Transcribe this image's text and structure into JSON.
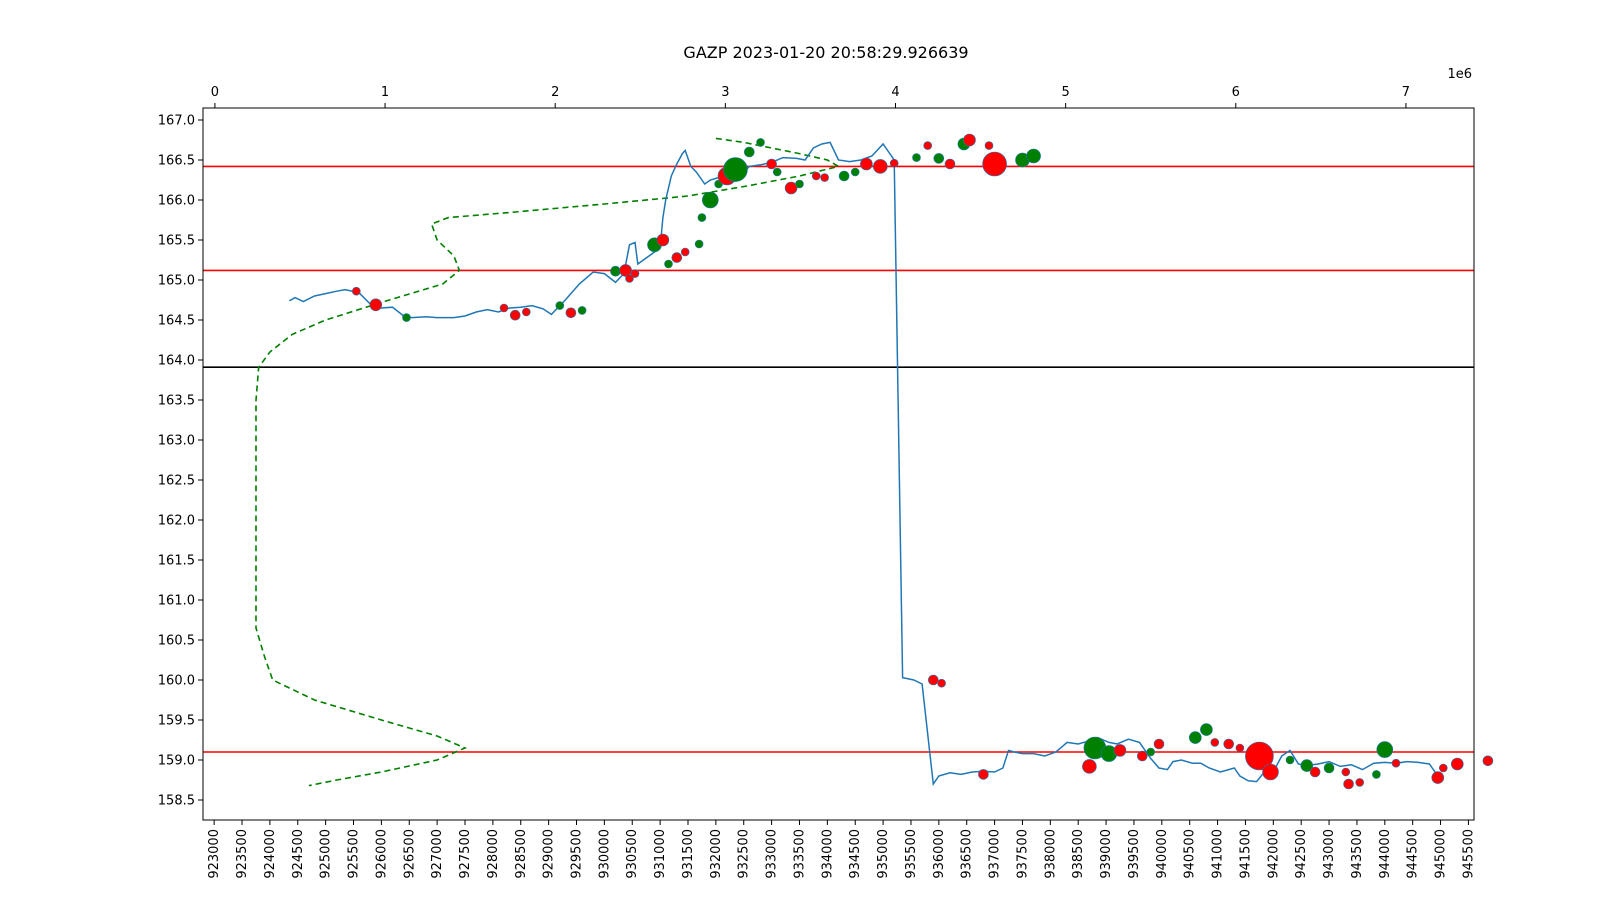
{
  "chart_data": {
    "type": "line",
    "title": "GAZP 2023-01-20 20:58:29.926639",
    "xlabel": "",
    "ylabel": "",
    "x_range": [
      922800,
      945600
    ],
    "ylim": [
      158.25,
      167.15
    ],
    "x_ticks": [
      923000,
      923500,
      924000,
      924500,
      925000,
      925500,
      926000,
      926500,
      927000,
      927500,
      928000,
      928500,
      929000,
      929500,
      930000,
      930500,
      931000,
      931500,
      932000,
      932500,
      933000,
      933500,
      934000,
      934500,
      935000,
      935500,
      936000,
      936500,
      937000,
      937500,
      938000,
      938500,
      939000,
      939500,
      940000,
      940500,
      941000,
      941500,
      942000,
      942500,
      943000,
      943500,
      944000,
      944500,
      945000,
      945500
    ],
    "y_ticks": [
      "158.5",
      "159.0",
      "159.5",
      "160.0",
      "160.5",
      "161.0",
      "161.5",
      "162.0",
      "162.5",
      "163.0",
      "163.5",
      "164.0",
      "164.5",
      "165.0",
      "165.5",
      "166.0",
      "166.5",
      "167.0"
    ],
    "top_axis": {
      "range": [
        -0.07,
        7.4
      ],
      "ticks": [
        "0",
        "1",
        "2",
        "3",
        "4",
        "5",
        "6",
        "7"
      ],
      "offset_label": "1e6"
    },
    "hlines": [
      {
        "y": 166.42,
        "color": "#ff0000"
      },
      {
        "y": 165.12,
        "color": "#ff0000"
      },
      {
        "y": 163.91,
        "color": "#000000"
      },
      {
        "y": 159.1,
        "color": "#ff0000"
      }
    ],
    "price_series": {
      "color": "#1f77b4",
      "points": [
        [
          924350,
          164.74
        ],
        [
          924450,
          164.78
        ],
        [
          924600,
          164.73
        ],
        [
          924800,
          164.8
        ],
        [
          925000,
          164.83
        ],
        [
          925200,
          164.86
        ],
        [
          925350,
          164.88
        ],
        [
          925600,
          164.84
        ],
        [
          925800,
          164.7
        ],
        [
          926000,
          164.65
        ],
        [
          926200,
          164.66
        ],
        [
          926400,
          164.55
        ],
        [
          926550,
          164.53
        ],
        [
          926800,
          164.54
        ],
        [
          927000,
          164.53
        ],
        [
          927300,
          164.53
        ],
        [
          927500,
          164.55
        ],
        [
          927700,
          164.6
        ],
        [
          927900,
          164.63
        ],
        [
          928100,
          164.6
        ],
        [
          928300,
          164.65
        ],
        [
          928500,
          164.66
        ],
        [
          928700,
          164.68
        ],
        [
          928900,
          164.64
        ],
        [
          929050,
          164.57
        ],
        [
          929300,
          164.75
        ],
        [
          929550,
          164.95
        ],
        [
          929800,
          165.1
        ],
        [
          930000,
          165.08
        ],
        [
          930200,
          164.97
        ],
        [
          930350,
          165.08
        ],
        [
          930450,
          165.44
        ],
        [
          930550,
          165.47
        ],
        [
          930600,
          165.2
        ],
        [
          930800,
          165.3
        ],
        [
          930900,
          165.35
        ],
        [
          931000,
          165.4
        ],
        [
          931050,
          165.78
        ],
        [
          931100,
          166.0
        ],
        [
          931200,
          166.3
        ],
        [
          931300,
          166.45
        ],
        [
          931400,
          166.58
        ],
        [
          931450,
          166.62
        ],
        [
          931550,
          166.42
        ],
        [
          931650,
          166.35
        ],
        [
          931800,
          166.2
        ],
        [
          931900,
          166.25
        ],
        [
          932050,
          166.28
        ],
        [
          932250,
          166.3
        ],
        [
          932450,
          166.3
        ],
        [
          932600,
          166.42
        ],
        [
          932800,
          166.44
        ],
        [
          933000,
          166.47
        ],
        [
          933200,
          166.53
        ],
        [
          933450,
          166.52
        ],
        [
          933600,
          166.5
        ],
        [
          933750,
          166.65
        ],
        [
          933900,
          166.7
        ],
        [
          934050,
          166.72
        ],
        [
          934200,
          166.5
        ],
        [
          934400,
          166.48
        ],
        [
          934600,
          166.5
        ],
        [
          934800,
          166.55
        ],
        [
          935000,
          166.7
        ],
        [
          935100,
          166.6
        ],
        [
          935200,
          166.5
        ],
        [
          935350,
          160.03
        ],
        [
          935550,
          160.0
        ],
        [
          935700,
          159.95
        ],
        [
          935900,
          158.7
        ],
        [
          936000,
          158.8
        ],
        [
          936200,
          158.84
        ],
        [
          936400,
          158.82
        ],
        [
          936600,
          158.85
        ],
        [
          936800,
          158.86
        ],
        [
          937000,
          158.85
        ],
        [
          937150,
          158.9
        ],
        [
          937250,
          159.12
        ],
        [
          937350,
          159.1
        ],
        [
          937500,
          159.08
        ],
        [
          937700,
          159.08
        ],
        [
          937900,
          159.05
        ],
        [
          938100,
          159.1
        ],
        [
          938300,
          159.22
        ],
        [
          938500,
          159.2
        ],
        [
          938700,
          159.24
        ],
        [
          938850,
          159.28
        ],
        [
          939050,
          159.22
        ],
        [
          939200,
          159.2
        ],
        [
          939400,
          159.26
        ],
        [
          939600,
          159.22
        ],
        [
          939800,
          159.02
        ],
        [
          939950,
          158.9
        ],
        [
          940100,
          158.88
        ],
        [
          940200,
          158.98
        ],
        [
          940350,
          159.0
        ],
        [
          940550,
          158.96
        ],
        [
          940700,
          158.96
        ],
        [
          940850,
          158.9
        ],
        [
          941050,
          158.85
        ],
        [
          941200,
          158.88
        ],
        [
          941300,
          158.9
        ],
        [
          941400,
          158.8
        ],
        [
          941550,
          158.74
        ],
        [
          941700,
          158.73
        ],
        [
          941850,
          158.86
        ],
        [
          942000,
          158.85
        ],
        [
          942150,
          159.05
        ],
        [
          942300,
          159.12
        ],
        [
          942450,
          158.95
        ],
        [
          942600,
          158.93
        ],
        [
          942800,
          158.95
        ],
        [
          943000,
          158.98
        ],
        [
          943200,
          158.92
        ],
        [
          943400,
          158.94
        ],
        [
          943600,
          158.88
        ],
        [
          943800,
          158.96
        ],
        [
          944000,
          158.97
        ],
        [
          944200,
          158.96
        ],
        [
          944400,
          158.98
        ],
        [
          944600,
          158.97
        ],
        [
          944800,
          158.95
        ],
        [
          944950,
          158.8
        ]
      ]
    },
    "profile_series": {
      "color": "#008000",
      "points": [
        [
          932000,
          166.77
        ],
        [
          932500,
          166.72
        ],
        [
          933000,
          166.65
        ],
        [
          933500,
          166.58
        ],
        [
          934000,
          166.5
        ],
        [
          934200,
          166.42
        ],
        [
          933500,
          166.3
        ],
        [
          932600,
          166.18
        ],
        [
          931500,
          166.05
        ],
        [
          930000,
          165.95
        ],
        [
          928400,
          165.85
        ],
        [
          927200,
          165.78
        ],
        [
          926900,
          165.7
        ],
        [
          927000,
          165.5
        ],
        [
          927300,
          165.3
        ],
        [
          927400,
          165.12
        ],
        [
          927100,
          164.95
        ],
        [
          926000,
          164.72
        ],
        [
          925000,
          164.5
        ],
        [
          924400,
          164.32
        ],
        [
          924000,
          164.1
        ],
        [
          923800,
          163.91
        ],
        [
          923750,
          163.5
        ],
        [
          923750,
          162.0
        ],
        [
          923750,
          160.65
        ],
        [
          923900,
          160.3
        ],
        [
          924050,
          160.0
        ],
        [
          924800,
          159.75
        ],
        [
          926000,
          159.5
        ],
        [
          927000,
          159.3
        ],
        [
          927500,
          159.15
        ],
        [
          927000,
          159.0
        ],
        [
          926000,
          158.85
        ],
        [
          925200,
          158.75
        ],
        [
          924700,
          158.68
        ]
      ]
    },
    "trades": [
      {
        "x": 925550,
        "y": 164.86,
        "size": 4,
        "side": "sell"
      },
      {
        "x": 925900,
        "y": 164.69,
        "size": 6,
        "side": "sell"
      },
      {
        "x": 926450,
        "y": 164.53,
        "size": 4,
        "side": "buy"
      },
      {
        "x": 928200,
        "y": 164.65,
        "size": 4,
        "side": "sell"
      },
      {
        "x": 928400,
        "y": 164.56,
        "size": 5,
        "side": "sell"
      },
      {
        "x": 928600,
        "y": 164.6,
        "size": 4,
        "side": "sell"
      },
      {
        "x": 929200,
        "y": 164.68,
        "size": 4,
        "side": "buy"
      },
      {
        "x": 929400,
        "y": 164.59,
        "size": 5,
        "side": "sell"
      },
      {
        "x": 929600,
        "y": 164.62,
        "size": 4,
        "side": "buy"
      },
      {
        "x": 930200,
        "y": 165.11,
        "size": 5,
        "side": "buy"
      },
      {
        "x": 930380,
        "y": 165.12,
        "size": 6,
        "side": "sell"
      },
      {
        "x": 930450,
        "y": 165.02,
        "size": 4,
        "side": "sell"
      },
      {
        "x": 930550,
        "y": 165.08,
        "size": 4,
        "side": "sell"
      },
      {
        "x": 930900,
        "y": 165.44,
        "size": 7,
        "side": "buy"
      },
      {
        "x": 931050,
        "y": 165.5,
        "size": 6,
        "side": "sell"
      },
      {
        "x": 931150,
        "y": 165.2,
        "size": 4,
        "side": "buy"
      },
      {
        "x": 931300,
        "y": 165.28,
        "size": 5,
        "side": "sell"
      },
      {
        "x": 931450,
        "y": 165.35,
        "size": 4,
        "side": "sell"
      },
      {
        "x": 931700,
        "y": 165.45,
        "size": 4,
        "side": "buy"
      },
      {
        "x": 931750,
        "y": 165.78,
        "size": 4,
        "side": "buy"
      },
      {
        "x": 931900,
        "y": 166.0,
        "size": 8,
        "side": "buy"
      },
      {
        "x": 932050,
        "y": 166.2,
        "size": 4,
        "side": "buy"
      },
      {
        "x": 932200,
        "y": 166.3,
        "size": 9,
        "side": "sell"
      },
      {
        "x": 932350,
        "y": 166.38,
        "size": 12,
        "side": "buy"
      },
      {
        "x": 932600,
        "y": 166.6,
        "size": 5,
        "side": "buy"
      },
      {
        "x": 932800,
        "y": 166.72,
        "size": 4,
        "side": "buy"
      },
      {
        "x": 933000,
        "y": 166.45,
        "size": 5,
        "side": "sell"
      },
      {
        "x": 933100,
        "y": 166.35,
        "size": 4,
        "side": "buy"
      },
      {
        "x": 933350,
        "y": 166.15,
        "size": 6,
        "side": "sell"
      },
      {
        "x": 933500,
        "y": 166.2,
        "size": 4,
        "side": "buy"
      },
      {
        "x": 933800,
        "y": 166.3,
        "size": 4,
        "side": "sell"
      },
      {
        "x": 933950,
        "y": 166.28,
        "size": 4,
        "side": "sell"
      },
      {
        "x": 934300,
        "y": 166.3,
        "size": 5,
        "side": "buy"
      },
      {
        "x": 934500,
        "y": 166.35,
        "size": 4,
        "side": "buy"
      },
      {
        "x": 934700,
        "y": 166.45,
        "size": 6,
        "side": "sell"
      },
      {
        "x": 934950,
        "y": 166.42,
        "size": 7,
        "side": "sell"
      },
      {
        "x": 935200,
        "y": 166.46,
        "size": 4,
        "side": "sell"
      },
      {
        "x": 935600,
        "y": 166.53,
        "size": 4,
        "side": "buy"
      },
      {
        "x": 935800,
        "y": 166.68,
        "size": 4,
        "side": "sell"
      },
      {
        "x": 936000,
        "y": 166.52,
        "size": 5,
        "side": "buy"
      },
      {
        "x": 936200,
        "y": 166.45,
        "size": 5,
        "side": "sell"
      },
      {
        "x": 936450,
        "y": 166.7,
        "size": 6,
        "side": "buy"
      },
      {
        "x": 936550,
        "y": 166.75,
        "size": 6,
        "side": "sell"
      },
      {
        "x": 936900,
        "y": 166.68,
        "size": 4,
        "side": "sell"
      },
      {
        "x": 937000,
        "y": 166.45,
        "size": 12,
        "side": "sell"
      },
      {
        "x": 937500,
        "y": 166.5,
        "size": 7,
        "side": "buy"
      },
      {
        "x": 937700,
        "y": 166.55,
        "size": 7,
        "side": "buy"
      },
      {
        "x": 935900,
        "y": 160.0,
        "size": 5,
        "side": "sell"
      },
      {
        "x": 936050,
        "y": 159.96,
        "size": 4,
        "side": "sell"
      },
      {
        "x": 936800,
        "y": 158.82,
        "size": 5,
        "side": "sell"
      },
      {
        "x": 938700,
        "y": 158.92,
        "size": 7,
        "side": "sell"
      },
      {
        "x": 938800,
        "y": 159.15,
        "size": 11,
        "side": "buy"
      },
      {
        "x": 939050,
        "y": 159.08,
        "size": 8,
        "side": "buy"
      },
      {
        "x": 939250,
        "y": 159.12,
        "size": 6,
        "side": "sell"
      },
      {
        "x": 939650,
        "y": 159.05,
        "size": 5,
        "side": "sell"
      },
      {
        "x": 939800,
        "y": 159.1,
        "size": 4,
        "side": "buy"
      },
      {
        "x": 939950,
        "y": 159.2,
        "size": 5,
        "side": "sell"
      },
      {
        "x": 940600,
        "y": 159.28,
        "size": 6,
        "side": "buy"
      },
      {
        "x": 940800,
        "y": 159.38,
        "size": 6,
        "side": "buy"
      },
      {
        "x": 940950,
        "y": 159.22,
        "size": 4,
        "side": "sell"
      },
      {
        "x": 941200,
        "y": 159.2,
        "size": 5,
        "side": "sell"
      },
      {
        "x": 941400,
        "y": 159.15,
        "size": 4,
        "side": "sell"
      },
      {
        "x": 941750,
        "y": 159.05,
        "size": 14,
        "side": "sell"
      },
      {
        "x": 941950,
        "y": 158.85,
        "size": 8,
        "side": "sell"
      },
      {
        "x": 942300,
        "y": 159.0,
        "size": 4,
        "side": "buy"
      },
      {
        "x": 942600,
        "y": 158.93,
        "size": 6,
        "side": "buy"
      },
      {
        "x": 942750,
        "y": 158.85,
        "size": 5,
        "side": "sell"
      },
      {
        "x": 943000,
        "y": 158.9,
        "size": 5,
        "side": "buy"
      },
      {
        "x": 943300,
        "y": 158.85,
        "size": 4,
        "side": "sell"
      },
      {
        "x": 943350,
        "y": 158.7,
        "size": 5,
        "side": "sell"
      },
      {
        "x": 943550,
        "y": 158.72,
        "size": 4,
        "side": "sell"
      },
      {
        "x": 943850,
        "y": 158.82,
        "size": 4,
        "side": "buy"
      },
      {
        "x": 944000,
        "y": 159.13,
        "size": 8,
        "side": "buy"
      },
      {
        "x": 944200,
        "y": 158.96,
        "size": 4,
        "side": "sell"
      },
      {
        "x": 945050,
        "y": 158.9,
        "size": 4,
        "side": "sell"
      },
      {
        "x": 945300,
        "y": 158.95,
        "size": 6,
        "side": "sell"
      },
      {
        "x": 945850,
        "y": 158.99,
        "size": 5,
        "side": "sell"
      },
      {
        "x": 944950,
        "y": 158.78,
        "size": 6,
        "side": "sell"
      }
    ],
    "colors": {
      "buy": "#008000",
      "sell": "#ff0000",
      "trade_edge": "#1f77b4"
    }
  }
}
